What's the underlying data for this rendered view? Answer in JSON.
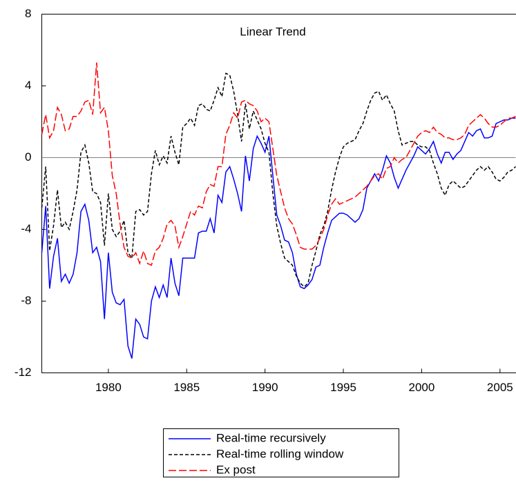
{
  "chart_data": {
    "type": "line",
    "title": "Linear Trend",
    "x": [
      1975.75,
      1976,
      1976.25,
      1976.5,
      1976.75,
      1977,
      1977.25,
      1977.5,
      1977.75,
      1978,
      1978.25,
      1978.5,
      1978.75,
      1979,
      1979.25,
      1979.5,
      1979.75,
      1980,
      1980.25,
      1980.5,
      1980.75,
      1981,
      1981.25,
      1981.5,
      1981.75,
      1982,
      1982.25,
      1982.5,
      1982.75,
      1983,
      1983.25,
      1983.5,
      1983.75,
      1984,
      1984.25,
      1984.5,
      1984.75,
      1985,
      1985.25,
      1985.5,
      1985.75,
      1986,
      1986.25,
      1986.5,
      1986.75,
      1987,
      1987.25,
      1987.5,
      1987.75,
      1988,
      1988.25,
      1988.5,
      1988.75,
      1989,
      1989.25,
      1989.5,
      1989.75,
      1990,
      1990.25,
      1990.5,
      1990.75,
      1991,
      1991.25,
      1991.5,
      1991.75,
      1992,
      1992.25,
      1992.5,
      1992.75,
      1993,
      1993.25,
      1993.5,
      1993.75,
      1994,
      1994.25,
      1994.5,
      1994.75,
      1995,
      1995.25,
      1995.5,
      1995.75,
      1996,
      1996.25,
      1996.5,
      1996.75,
      1997,
      1997.25,
      1997.5,
      1997.75,
      1998,
      1998.25,
      1998.5,
      1998.75,
      1999,
      1999.25,
      1999.5,
      1999.75,
      2000,
      2000.25,
      2000.5,
      2000.75,
      2001,
      2001.25,
      2001.5,
      2001.75,
      2002,
      2002.25,
      2002.5,
      2002.75,
      2003,
      2003.25,
      2003.5,
      2003.75,
      2004,
      2004.25,
      2004.5,
      2004.75,
      2005,
      2005.25,
      2005.5,
      2005.75,
      2006
    ],
    "series": [
      {
        "name": "Real-time recursively",
        "color": "#0000ff",
        "dash": "solid",
        "values": [
          -5.3,
          -2.7,
          -7.3,
          -5.5,
          -4.5,
          -6.9,
          -6.5,
          -7.0,
          -6.5,
          -5.3,
          -3.0,
          -2.6,
          -3.5,
          -5.3,
          -5.0,
          -5.8,
          -9.0,
          -5.3,
          -7.5,
          -8.1,
          -8.2,
          -7.9,
          -10.5,
          -11.2,
          -9.0,
          -9.3,
          -10.0,
          -10.1,
          -8.0,
          -7.2,
          -7.8,
          -7.1,
          -7.8,
          -5.6,
          -7.0,
          -7.7,
          -5.6,
          -5.6,
          -5.6,
          -5.6,
          -4.2,
          -4.1,
          -4.1,
          -3.4,
          -4.2,
          -2.1,
          -2.5,
          -0.8,
          -0.5,
          -1.2,
          -2.0,
          -3.0,
          0.1,
          -1.3,
          0.5,
          1.2,
          0.8,
          0.3,
          1.2,
          -1.0,
          -3.2,
          -3.8,
          -4.6,
          -4.7,
          -5.3,
          -6.5,
          -7.2,
          -7.3,
          -7.1,
          -6.8,
          -6.1,
          -6.0,
          -5.0,
          -4.2,
          -3.5,
          -3.3,
          -3.1,
          -3.1,
          -3.2,
          -3.4,
          -3.6,
          -3.4,
          -2.9,
          -1.7,
          -1.3,
          -0.9,
          -1.3,
          -0.7,
          0.1,
          -0.3,
          -1.1,
          -1.7,
          -1.2,
          -0.7,
          -0.3,
          0.1,
          0.6,
          0.4,
          0.2,
          0.5,
          0.9,
          0.2,
          -0.3,
          0.3,
          0.3,
          -0.1,
          0.2,
          0.4,
          0.9,
          1.4,
          1.2,
          1.5,
          1.6,
          1.1,
          1.1,
          1.2,
          1.9,
          2.0,
          2.1,
          2.1,
          2.2,
          2.2
        ]
      },
      {
        "name": "Real-time rolling window",
        "color": "#000000",
        "dash": "short",
        "values": [
          -2.8,
          -0.5,
          -5.2,
          -3.8,
          -1.8,
          -3.9,
          -3.6,
          -4.0,
          -3.0,
          -1.8,
          0.3,
          0.7,
          -0.3,
          -1.9,
          -2.0,
          -2.5,
          -4.9,
          -2.0,
          -4.0,
          -4.4,
          -4.1,
          -3.5,
          -5.3,
          -5.6,
          -3.0,
          -2.9,
          -3.2,
          -3.0,
          -0.9,
          0.4,
          -0.4,
          0.1,
          -0.3,
          1.2,
          0.3,
          -0.4,
          1.7,
          1.9,
          2.2,
          1.8,
          2.9,
          3.0,
          2.7,
          2.6,
          3.2,
          3.9,
          3.4,
          4.7,
          4.6,
          3.7,
          2.4,
          0.9,
          3.0,
          1.6,
          2.6,
          2.1,
          1.6,
          0.8,
          0.3,
          -2.0,
          -3.8,
          -4.8,
          -5.6,
          -5.8,
          -6.0,
          -6.6,
          -7.0,
          -7.2,
          -7.0,
          -6.0,
          -5.2,
          -4.3,
          -3.8,
          -3.0,
          -1.8,
          -0.8,
          0.0,
          0.6,
          0.8,
          0.9,
          1.0,
          1.5,
          1.9,
          2.6,
          3.2,
          3.6,
          3.7,
          3.2,
          3.5,
          3.0,
          2.6,
          1.5,
          0.7,
          0.8,
          0.9,
          0.9,
          0.7,
          0.6,
          0.6,
          0.4,
          -0.3,
          -0.9,
          -1.7,
          -2.1,
          -1.5,
          -1.3,
          -1.5,
          -1.7,
          -1.6,
          -1.3,
          -1.0,
          -0.7,
          -0.5,
          -0.7,
          -0.5,
          -0.8,
          -1.2,
          -1.3,
          -1.1,
          -0.8,
          -0.7,
          -0.5
        ]
      },
      {
        "name": "Ex post",
        "color": "#ff0000",
        "dash": "long",
        "values": [
          1.3,
          2.4,
          1.1,
          1.5,
          2.8,
          2.4,
          1.5,
          1.6,
          2.3,
          2.3,
          2.6,
          3.1,
          3.2,
          2.4,
          5.3,
          2.5,
          2.8,
          1.5,
          -1.0,
          -2.0,
          -3.7,
          -5.0,
          -5.5,
          -5.6,
          -5.3,
          -5.9,
          -5.2,
          -5.9,
          -6.0,
          -5.2,
          -5.0,
          -4.5,
          -3.7,
          -3.5,
          -3.8,
          -5.0,
          -4.4,
          -3.7,
          -3.0,
          -3.2,
          -2.7,
          -2.8,
          -1.9,
          -1.5,
          -1.6,
          -0.5,
          -0.5,
          1.3,
          1.8,
          2.5,
          2.2,
          3.1,
          3.2,
          3.0,
          2.9,
          2.6,
          2.0,
          2.2,
          2.0,
          0.5,
          -1.0,
          -1.9,
          -2.8,
          -3.4,
          -3.7,
          -4.3,
          -5.0,
          -5.1,
          -5.1,
          -5.1,
          -4.9,
          -4.5,
          -4.0,
          -3.2,
          -2.6,
          -2.3,
          -2.6,
          -2.5,
          -2.4,
          -2.3,
          -2.2,
          -2.0,
          -1.8,
          -1.6,
          -1.3,
          -1.0,
          -0.9,
          -1.2,
          -0.6,
          -0.5,
          0.0,
          -0.3,
          -0.1,
          0.0,
          0.4,
          0.8,
          1.2,
          1.4,
          1.5,
          1.4,
          1.7,
          1.4,
          1.3,
          1.1,
          1.1,
          1.0,
          1.0,
          1.1,
          1.3,
          1.8,
          2.0,
          2.2,
          2.4,
          2.2,
          1.9,
          1.7,
          1.7,
          1.8,
          2.0,
          2.2,
          2.2,
          2.3
        ]
      }
    ],
    "xlim": [
      1975.75,
      2006
    ],
    "xticks": [
      1980,
      1985,
      1990,
      1995,
      2000,
      2005
    ],
    "ylim": [
      -12,
      8
    ],
    "yticks": [
      8,
      4,
      0,
      -4,
      -8,
      -12
    ],
    "zero_line": true,
    "legend": "bottom"
  }
}
